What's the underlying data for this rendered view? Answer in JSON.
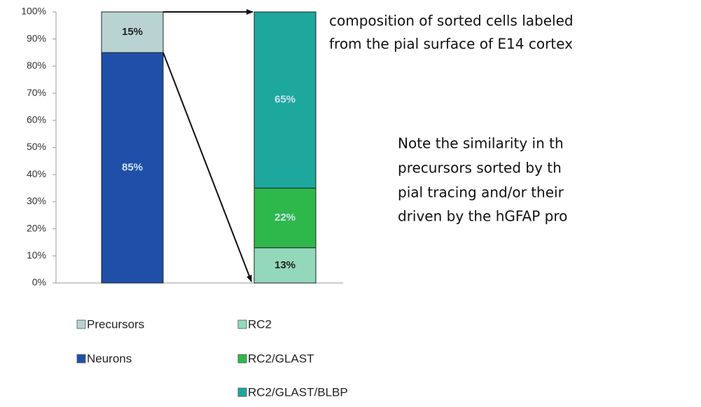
{
  "chart_data": {
    "type": "bar",
    "stacked": true,
    "categories": [
      null,
      null
    ],
    "series": [
      {
        "name": "Neurons",
        "color": "#1f4fa8",
        "values": [
          85,
          null
        ],
        "value_labels": [
          "85%",
          null
        ]
      },
      {
        "name": "Precursors",
        "color": "#b9d3d3",
        "values": [
          15,
          null
        ],
        "value_labels": [
          "15%",
          null
        ]
      },
      {
        "name": "RC2",
        "color": "#93d8bb",
        "values": [
          null,
          13
        ],
        "value_labels": [
          null,
          "13%"
        ]
      },
      {
        "name": "RC2/GLAST",
        "color": "#2eb84c",
        "values": [
          null,
          22
        ],
        "value_labels": [
          null,
          "22%"
        ]
      },
      {
        "name": "RC2/GLAST/BLBP",
        "color": "#1ea79d",
        "values": [
          null,
          65
        ],
        "value_labels": [
          null,
          "65%"
        ]
      }
    ],
    "ylim": [
      0,
      100
    ],
    "yticks": [
      {
        "value": 0,
        "label": "0%"
      },
      {
        "value": 10,
        "label": "10%"
      },
      {
        "value": 20,
        "label": "20%"
      },
      {
        "value": 30,
        "label": "30%"
      },
      {
        "value": 40,
        "label": "40%"
      },
      {
        "value": 50,
        "label": "50%"
      },
      {
        "value": 60,
        "label": "60%"
      },
      {
        "value": 70,
        "label": "70%"
      },
      {
        "value": 80,
        "label": "80%"
      },
      {
        "value": 90,
        "label": "90%"
      },
      {
        "value": 100,
        "label": "100%"
      }
    ]
  },
  "caption": [
    "composition of sorted cells labeled",
    "from the pial surface of E14 cortex"
  ],
  "note": [
    "Note the similarity in th",
    "precursors sorted by th",
    "pial tracing and/or their",
    "driven by the hGFAP pro"
  ]
}
